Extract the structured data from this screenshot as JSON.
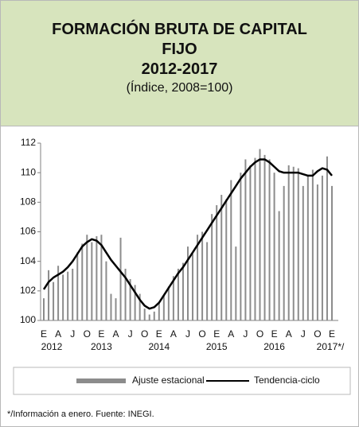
{
  "chart_data": {
    "type": "bar_line",
    "title": "FORMACIÓN BRUTA DE CAPITAL FIJO",
    "subtitle": "2012-2017",
    "note": "(Índice, 2008=100)",
    "footer": "*/Información a enero.   Fuente: INEGI.",
    "categories": [
      "E",
      null,
      null,
      "A",
      null,
      null,
      "J",
      null,
      null,
      "O",
      null,
      null,
      "E",
      null,
      null,
      "A",
      null,
      null,
      "J",
      null,
      null,
      "O",
      null,
      null,
      "E",
      null,
      null,
      "A",
      null,
      null,
      "J",
      null,
      null,
      "O",
      null,
      null,
      "E",
      null,
      null,
      "A",
      null,
      null,
      "J",
      null,
      null,
      "O",
      null,
      null,
      "E",
      null,
      null,
      "A",
      null,
      null,
      "J",
      null,
      null,
      "O",
      null,
      null,
      "E"
    ],
    "years": [
      "2012",
      "2013",
      "2014",
      "2015",
      "2016",
      "2017*/"
    ],
    "series": [
      {
        "name": "Ajuste estacional",
        "kind": "bar",
        "color": "#8c8c8c",
        "values": [
          101.5,
          103.4,
          102.6,
          103.7,
          103.1,
          103.3,
          103.5,
          104.6,
          105.2,
          105.8,
          105.3,
          105.7,
          105.8,
          104.0,
          101.8,
          101.5,
          105.6,
          103.5,
          102.8,
          102.4,
          101.8,
          100.8,
          100.4,
          100.6,
          101.2,
          101.7,
          102.3,
          103.0,
          103.5,
          103.9,
          105.0,
          104.5,
          105.8,
          106.0,
          105.3,
          107.2,
          107.8,
          108.5,
          108.2,
          109.5,
          105.0,
          110.0,
          110.9,
          110.5,
          111.0,
          111.6,
          111.2,
          110.9,
          110.0,
          107.4,
          109.1,
          110.5,
          110.4,
          110.3,
          109.1,
          109.8,
          110.2,
          109.2,
          109.8,
          111.1,
          109.1
        ]
      },
      {
        "name": "Tendencia-ciclo",
        "kind": "line",
        "color": "#000000",
        "values": [
          102.1,
          102.6,
          102.9,
          103.1,
          103.3,
          103.6,
          104.0,
          104.5,
          105.0,
          105.3,
          105.5,
          105.4,
          105.1,
          104.6,
          104.1,
          103.7,
          103.3,
          102.9,
          102.4,
          101.9,
          101.4,
          101.0,
          100.8,
          100.9,
          101.2,
          101.7,
          102.2,
          102.7,
          103.2,
          103.6,
          104.1,
          104.6,
          105.1,
          105.6,
          106.1,
          106.6,
          107.1,
          107.6,
          108.1,
          108.6,
          109.1,
          109.6,
          110.0,
          110.4,
          110.7,
          110.9,
          110.9,
          110.7,
          110.4,
          110.1,
          110.0,
          110.0,
          110.0,
          110.0,
          109.9,
          109.8,
          109.8,
          110.1,
          110.3,
          110.2,
          109.8
        ]
      }
    ],
    "ylim": [
      100,
      112
    ],
    "yticks": [
      100,
      102,
      104,
      106,
      108,
      110,
      112
    ],
    "grid": false
  }
}
